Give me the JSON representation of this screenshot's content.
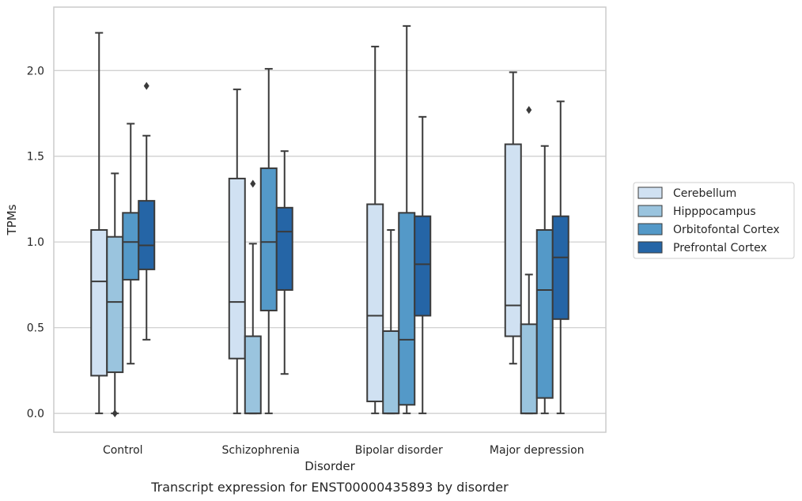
{
  "chart_data": {
    "type": "box",
    "xlabel": "Disorder",
    "ylabel": "TPMs",
    "caption": "Transcript expression for ENST00000435893 by disorder",
    "ylim": [
      -0.11,
      2.37
    ],
    "yticks": [
      0.0,
      0.5,
      1.0,
      1.5,
      2.0
    ],
    "ytick_labels": [
      "0.0",
      "0.5",
      "1.0",
      "1.5",
      "2.0"
    ],
    "grid": "horizontal",
    "legend_position": "right",
    "categories": [
      "Control",
      "Schizophrenia",
      "Bipolar disorder",
      "Major depression"
    ],
    "series": [
      {
        "name": "Cerebellum",
        "color": "#d0e1f2",
        "boxes": [
          {
            "whislo": 0.0,
            "q1": 0.22,
            "med": 0.77,
            "q3": 1.07,
            "whishi": 2.22,
            "fliers": []
          },
          {
            "whislo": 0.0,
            "q1": 0.32,
            "med": 0.65,
            "q3": 1.37,
            "whishi": 1.89,
            "fliers": []
          },
          {
            "whislo": 0.0,
            "q1": 0.07,
            "med": 0.57,
            "q3": 1.22,
            "whishi": 2.14,
            "fliers": []
          },
          {
            "whislo": 0.29,
            "q1": 0.45,
            "med": 0.63,
            "q3": 1.57,
            "whishi": 1.99,
            "fliers": []
          }
        ]
      },
      {
        "name": "Hipppocampus",
        "color": "#9ac4de",
        "boxes": [
          {
            "whislo": 0.0,
            "q1": 0.24,
            "med": 0.65,
            "q3": 1.03,
            "whishi": 1.4,
            "fliers": [
              0.0
            ]
          },
          {
            "whislo": 0.0,
            "q1": 0.0,
            "med": 0.0,
            "q3": 0.45,
            "whishi": 0.99,
            "fliers": [
              1.34
            ]
          },
          {
            "whislo": 0.0,
            "q1": 0.0,
            "med": 0.0,
            "q3": 0.48,
            "whishi": 1.07,
            "fliers": []
          },
          {
            "whislo": 0.0,
            "q1": 0.0,
            "med": 0.0,
            "q3": 0.52,
            "whishi": 0.81,
            "fliers": [
              1.77
            ]
          }
        ]
      },
      {
        "name": "Orbitofontal Cortex",
        "color": "#5499c8",
        "boxes": [
          {
            "whislo": 0.29,
            "q1": 0.78,
            "med": 1.0,
            "q3": 1.17,
            "whishi": 1.69,
            "fliers": []
          },
          {
            "whislo": 0.0,
            "q1": 0.6,
            "med": 1.0,
            "q3": 1.43,
            "whishi": 2.01,
            "fliers": []
          },
          {
            "whislo": 0.0,
            "q1": 0.05,
            "med": 0.43,
            "q3": 1.17,
            "whishi": 2.26,
            "fliers": []
          },
          {
            "whislo": 0.0,
            "q1": 0.09,
            "med": 0.72,
            "q3": 1.07,
            "whishi": 1.56,
            "fliers": []
          }
        ]
      },
      {
        "name": "Prefrontal Cortex",
        "color": "#2565a6",
        "boxes": [
          {
            "whislo": 0.43,
            "q1": 0.84,
            "med": 0.98,
            "q3": 1.24,
            "whishi": 1.62,
            "fliers": [
              1.91
            ]
          },
          {
            "whislo": 0.23,
            "q1": 0.72,
            "med": 1.06,
            "q3": 1.2,
            "whishi": 1.53,
            "fliers": []
          },
          {
            "whislo": 0.0,
            "q1": 0.57,
            "med": 0.87,
            "q3": 1.15,
            "whishi": 1.73,
            "fliers": []
          },
          {
            "whislo": 0.0,
            "q1": 0.55,
            "med": 0.91,
            "q3": 1.15,
            "whishi": 1.82,
            "fliers": []
          }
        ]
      }
    ]
  }
}
